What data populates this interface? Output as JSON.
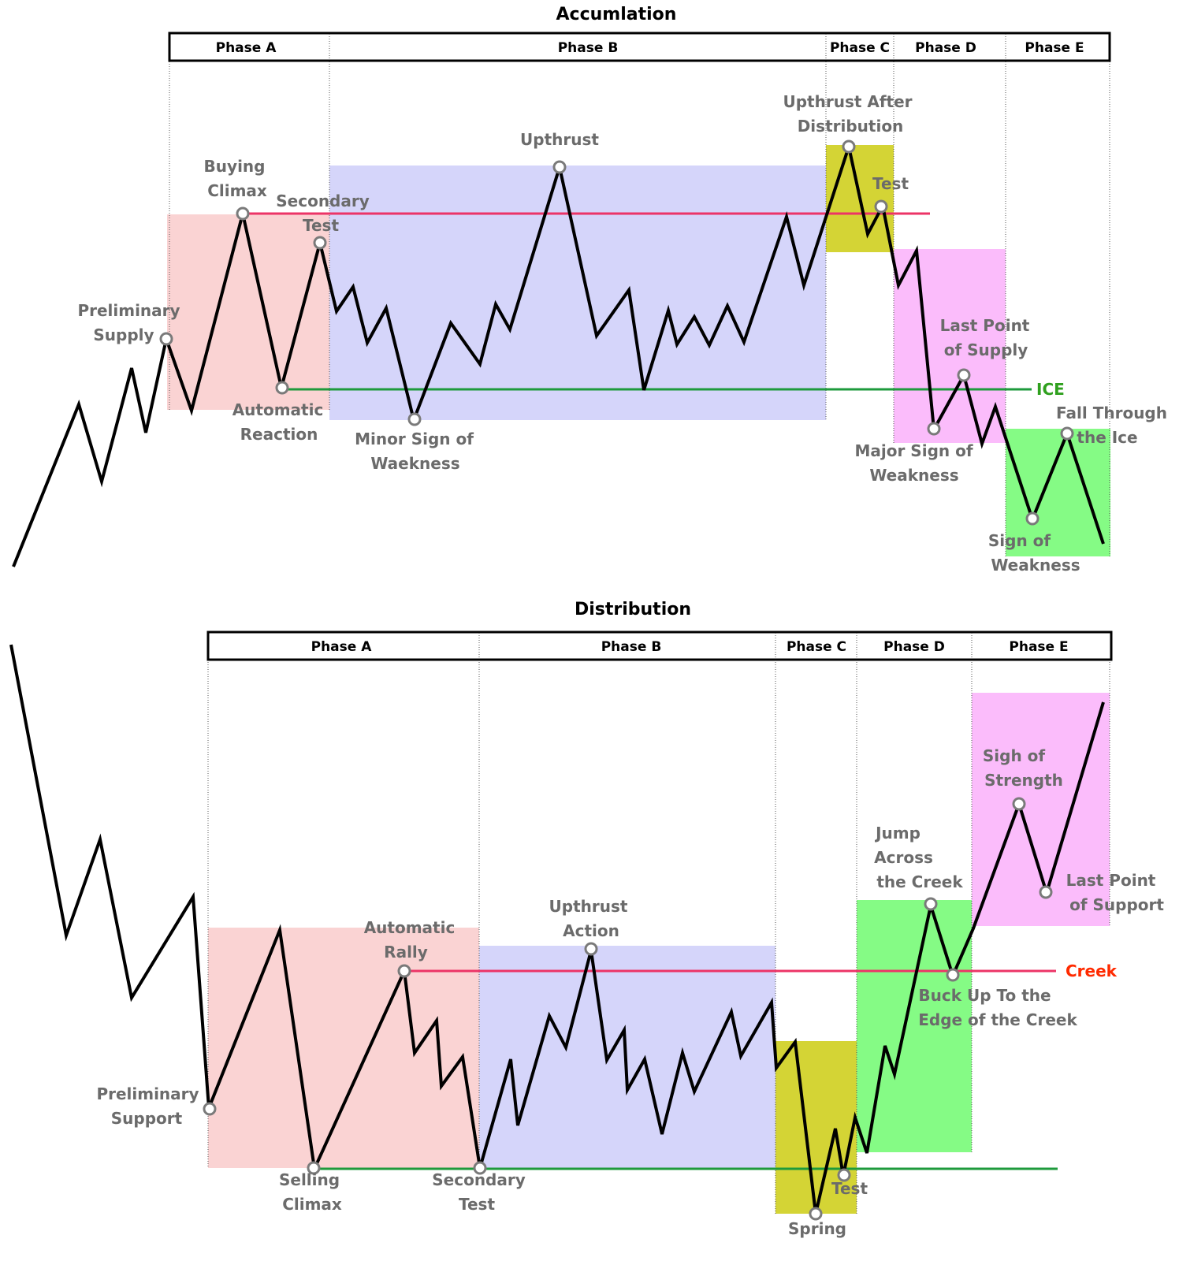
{
  "colors": {
    "phase_a": "#fad3d3",
    "phase_b": "#d5d5fa",
    "phase_c": "#d4d435",
    "phase_d_pink": "#fbbcfb",
    "phase_green": "#85fb85",
    "resistance": "#ec3467",
    "support": "#1e9a3c",
    "ice_text": "#2fa01e",
    "creek_text": "#ff2a00",
    "label_gray": "#6b6b6b",
    "price": "#000000"
  },
  "accumulation": {
    "title": "Accumlation",
    "phases": [
      "Phase A",
      "Phase B",
      "Phase C",
      "Phase D",
      "Phase E"
    ],
    "labels": {
      "preliminary_supply": [
        "Preliminary",
        "Supply"
      ],
      "buying_climax": [
        "Buying",
        "Climax"
      ],
      "secondary_test": [
        "Secondary",
        "Test"
      ],
      "automatic_reaction": [
        "Automatic",
        "Reaction"
      ],
      "minor_sign_of_weakness": [
        "Minor Sign of",
        "Waekness"
      ],
      "upthrust": [
        "Upthrust"
      ],
      "upthrust_after_distribution": [
        "Upthrust After",
        "Distribution"
      ],
      "test": [
        "Test"
      ],
      "last_point_of_supply": [
        "Last Point",
        "of Supply"
      ],
      "major_sign_of_weakness": [
        "Major Sign of",
        "Weakness"
      ],
      "fall_through_the_ice": [
        "Fall Through",
        "the Ice"
      ],
      "sign_of_weakness": [
        "Sign of",
        "Weakness"
      ]
    },
    "level_label": "ICE"
  },
  "distribution": {
    "title": "Distribution",
    "phases": [
      "Phase A",
      "Phase B",
      "Phase C",
      "Phase D",
      "Phase E"
    ],
    "labels": {
      "preliminary_support": [
        "Preliminary",
        "Support"
      ],
      "selling_climax": [
        "Selling",
        "Climax"
      ],
      "automatic_rally": [
        "Automatic",
        "Rally"
      ],
      "secondary_test": [
        "Secondary",
        "Test"
      ],
      "upthrust_action": [
        "Upthrust",
        "Action"
      ],
      "spring": [
        "Spring"
      ],
      "test": [
        "Test"
      ],
      "jump_across_the_creek": [
        "Jump",
        "Across",
        "the Creek"
      ],
      "buck_up_to_the_edge": [
        "Buck Up To the",
        "Edge of the Creek"
      ],
      "sign_of_strength": [
        "Sigh of",
        "Strength"
      ],
      "last_point_of_support": [
        "Last Point",
        "of Support"
      ]
    },
    "level_label": "Creek"
  }
}
